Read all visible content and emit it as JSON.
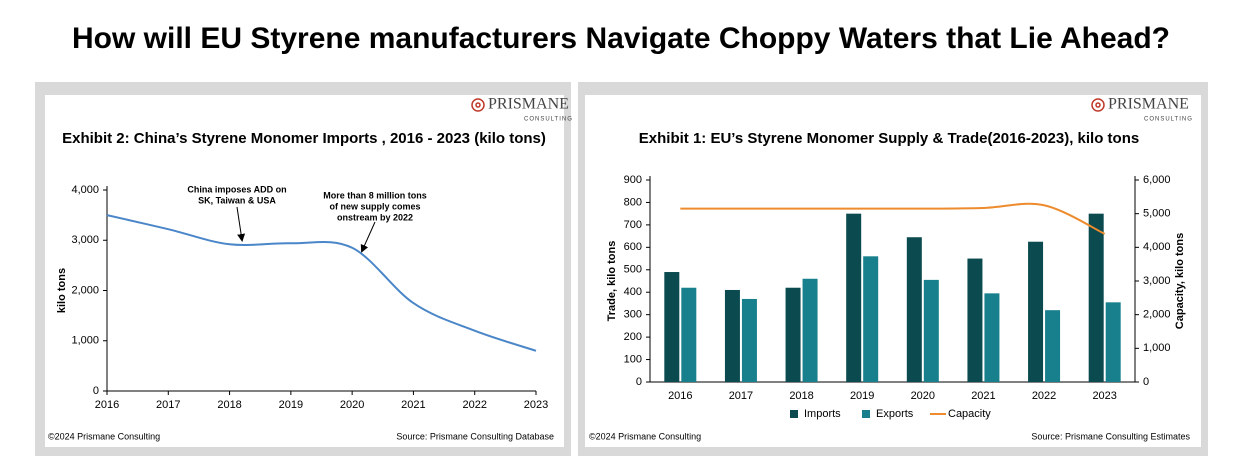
{
  "title": "How will EU Styrene manufacturers Navigate Choppy Waters that Lie Ahead?",
  "chart_data": [
    {
      "type": "line",
      "title": "Exhibit 2: China’s Styrene Monomer Imports , 2016 - 2023 (kilo tons)",
      "brand": "PRISMANE",
      "brand_sub": "CONSULTING",
      "footnote": "©2024 Prismane Consulting",
      "source": "Source: Prismane Consulting Database",
      "y_label": "kilo tons",
      "categories": [
        "2016",
        "2017",
        "2018",
        "2019",
        "2020",
        "2021",
        "2022",
        "2023"
      ],
      "series": [
        {
          "color": "#4a86c8",
          "values": [
            3500,
            3220,
            2920,
            2940,
            2850,
            1750,
            1200,
            800
          ]
        }
      ],
      "ylim": [
        0,
        4000
      ],
      "yticks": [
        0,
        {
          "value": 1000,
          "label": "1,000"
        },
        {
          "value": 2000,
          "label": "2,000"
        },
        {
          "value": 3000,
          "label": "3,000"
        },
        {
          "value": 4000,
          "label": "4,000"
        }
      ],
      "annotations": [
        [
          "China imposes ADD on",
          "SK, Taiwan & USA"
        ],
        [
          "More than 8 million tons",
          "of new supply comes",
          "onstream by 2022"
        ]
      ]
    },
    {
      "type": "bar",
      "title": "Exhibit 1: EU’s Styrene Monomer Supply & Trade(2016-2023), kilo tons",
      "brand": "PRISMANE",
      "brand_sub": "CONSULTING",
      "footnote": "©2024 Prismane Consulting",
      "source": "Source: Prismane Consulting Estimates",
      "y_label": "Trade, kilo tons",
      "y2_label": "Capacity, kilo tons",
      "categories": [
        "2016",
        "2017",
        "2018",
        "2019",
        "2020",
        "2021",
        "2022",
        "2023"
      ],
      "series": [
        {
          "name": "Imports",
          "color": "#0b4a4f",
          "values": [
            490,
            410,
            420,
            750,
            645,
            550,
            625,
            750
          ]
        },
        {
          "name": "Exports",
          "color": "#17808c",
          "values": [
            420,
            370,
            460,
            560,
            455,
            395,
            320,
            355
          ]
        },
        {
          "name": "Capacity",
          "color": "#ed8b2d",
          "axis": "y2",
          "type": "line",
          "values": [
            5150,
            5150,
            5150,
            5150,
            5150,
            5170,
            5250,
            4400
          ]
        }
      ],
      "ylim": [
        0,
        900
      ],
      "yticks": [
        0,
        100,
        200,
        300,
        400,
        500,
        600,
        700,
        800,
        900
      ],
      "y2lim": [
        0,
        6000
      ],
      "y2ticks": [
        0,
        {
          "value": 1000,
          "label": "1,000"
        },
        {
          "value": 2000,
          "label": "2,000"
        },
        {
          "value": 3000,
          "label": "3,000"
        },
        {
          "value": 4000,
          "label": "4,000"
        },
        {
          "value": 5000,
          "label": "5,000"
        },
        {
          "value": 6000,
          "label": "6,000"
        }
      ]
    }
  ]
}
